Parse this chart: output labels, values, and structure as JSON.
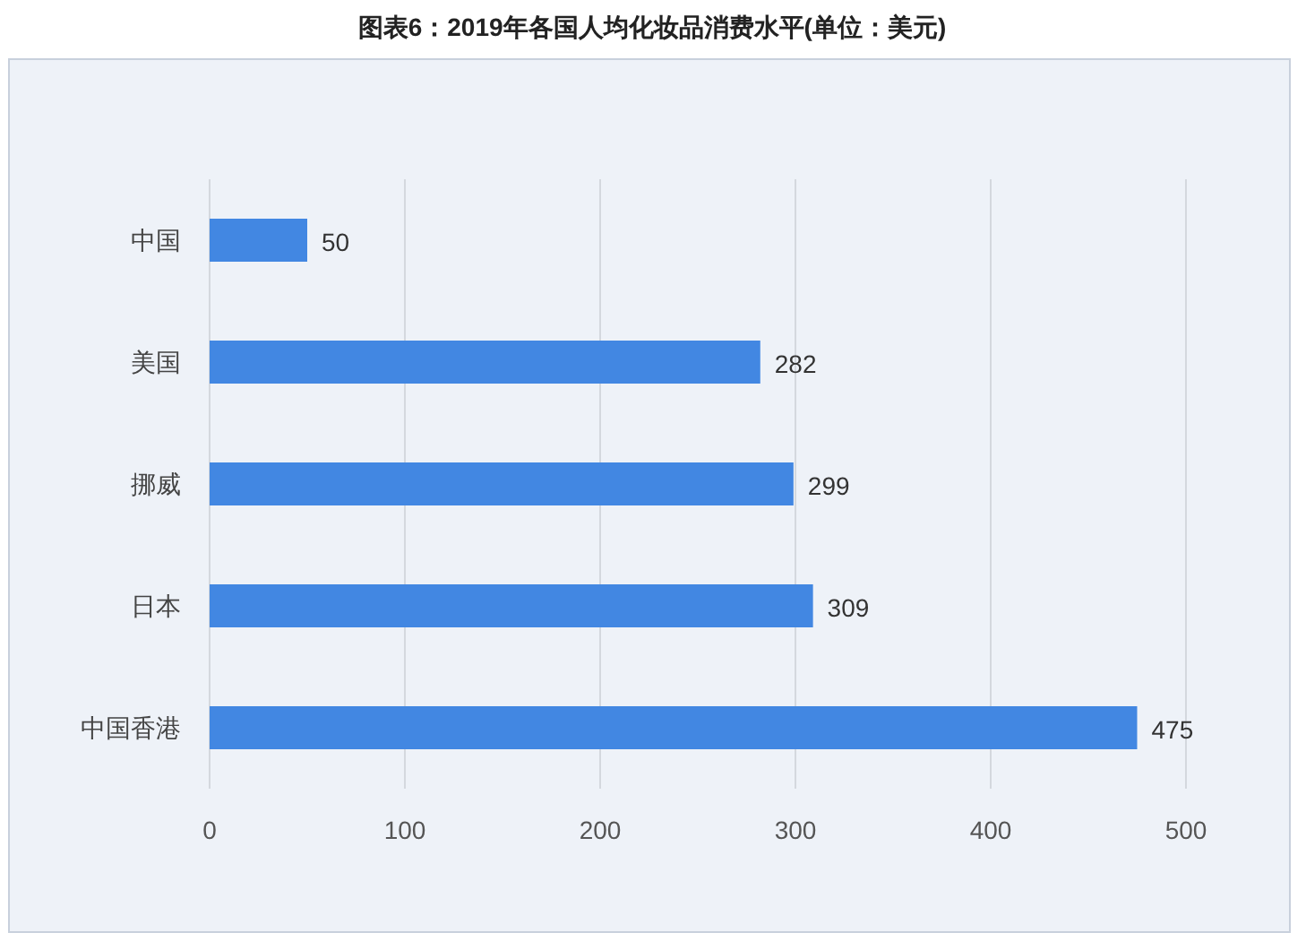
{
  "chart_data": {
    "type": "bar",
    "orientation": "horizontal",
    "title": "图表6：2019年各国人均化妆品消费水平(单位：美元)",
    "categories": [
      "中国",
      "美国",
      "挪威",
      "日本",
      "中国香港"
    ],
    "values": [
      50,
      282,
      299,
      309,
      475
    ],
    "color": "#4287e2",
    "xlim": [
      0,
      500
    ],
    "xticks": [
      0,
      100,
      200,
      300,
      400,
      500
    ],
    "grid": "x",
    "data_labels": true
  }
}
